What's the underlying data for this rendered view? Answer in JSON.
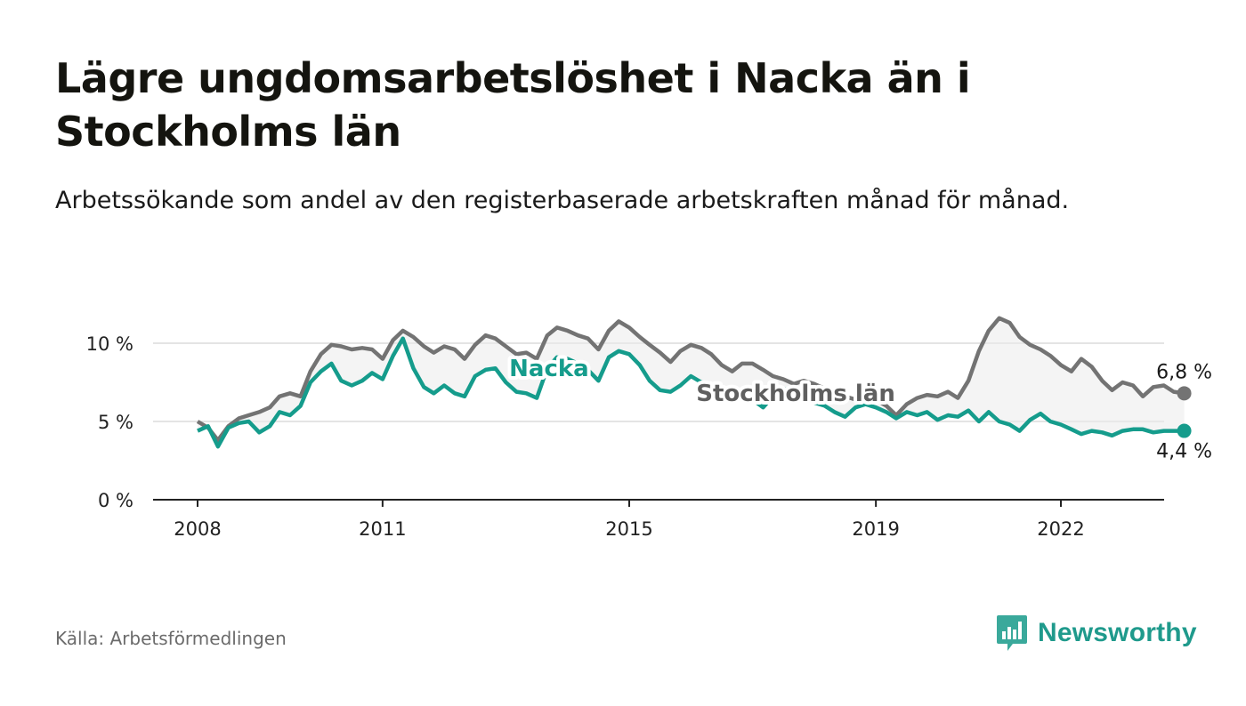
{
  "title": "Lägre ungdomsarbetslöshet i Nacka än i Stockholms län",
  "subtitle": "Arbetssökande som andel av den registerbaserade arbetskraften månad för månad.",
  "source": "Källa: Arbetsförmedlingen",
  "brand": "Newsworthy",
  "colors": {
    "nacka": "#159c8c",
    "stockholm": "#737373",
    "grid": "#dcdcdc",
    "band": "#ebebeb"
  },
  "chart_data": {
    "type": "line",
    "title": "Lägre ungdomsarbetslöshet i Nacka än i Stockholms län",
    "xlabel": "",
    "ylabel": "",
    "xlim": [
      2007.6,
      2023.6
    ],
    "ylim": [
      0,
      10
    ],
    "y_ticks": [
      0,
      5,
      10
    ],
    "y_tick_labels": [
      "0 %",
      "5 %",
      "10 %"
    ],
    "x_ticks": [
      2008,
      2011,
      2015,
      2019,
      2022
    ],
    "x_tick_labels": [
      "2008",
      "2011",
      "2015",
      "2019",
      "2022"
    ],
    "grid": true,
    "series": [
      {
        "name": "Stockholms län",
        "label": "Stockholms län",
        "color": "#737373",
        "end_label": "6,8 %",
        "points": [
          [
            2008.0,
            5.0
          ],
          [
            2008.17,
            4.6
          ],
          [
            2008.33,
            3.8
          ],
          [
            2008.5,
            4.7
          ],
          [
            2008.67,
            5.2
          ],
          [
            2008.83,
            5.4
          ],
          [
            2009.0,
            5.6
          ],
          [
            2009.17,
            5.9
          ],
          [
            2009.33,
            6.6
          ],
          [
            2009.5,
            6.8
          ],
          [
            2009.67,
            6.6
          ],
          [
            2009.83,
            8.2
          ],
          [
            2010.0,
            9.3
          ],
          [
            2010.17,
            9.9
          ],
          [
            2010.33,
            9.8
          ],
          [
            2010.5,
            9.6
          ],
          [
            2010.67,
            9.7
          ],
          [
            2010.83,
            9.6
          ],
          [
            2011.0,
            9.0
          ],
          [
            2011.17,
            10.2
          ],
          [
            2011.33,
            10.8
          ],
          [
            2011.5,
            10.4
          ],
          [
            2011.67,
            9.8
          ],
          [
            2011.83,
            9.4
          ],
          [
            2012.0,
            9.8
          ],
          [
            2012.17,
            9.6
          ],
          [
            2012.33,
            9.0
          ],
          [
            2012.5,
            9.9
          ],
          [
            2012.67,
            10.5
          ],
          [
            2012.83,
            10.3
          ],
          [
            2013.0,
            9.8
          ],
          [
            2013.17,
            9.3
          ],
          [
            2013.33,
            9.4
          ],
          [
            2013.5,
            9.0
          ],
          [
            2013.67,
            10.5
          ],
          [
            2013.83,
            11.0
          ],
          [
            2014.0,
            10.8
          ],
          [
            2014.17,
            10.5
          ],
          [
            2014.33,
            10.3
          ],
          [
            2014.5,
            9.6
          ],
          [
            2014.67,
            10.8
          ],
          [
            2014.83,
            11.4
          ],
          [
            2015.0,
            11.0
          ],
          [
            2015.17,
            10.4
          ],
          [
            2015.33,
            9.9
          ],
          [
            2015.5,
            9.4
          ],
          [
            2015.67,
            8.8
          ],
          [
            2015.83,
            9.5
          ],
          [
            2016.0,
            9.9
          ],
          [
            2016.17,
            9.7
          ],
          [
            2016.33,
            9.3
          ],
          [
            2016.5,
            8.6
          ],
          [
            2016.67,
            8.2
          ],
          [
            2016.83,
            8.7
          ],
          [
            2017.0,
            8.7
          ],
          [
            2017.17,
            8.3
          ],
          [
            2017.33,
            7.9
          ],
          [
            2017.5,
            7.7
          ],
          [
            2017.67,
            7.4
          ],
          [
            2017.83,
            7.6
          ],
          [
            2018.0,
            7.4
          ],
          [
            2018.17,
            7.1
          ],
          [
            2018.33,
            6.9
          ],
          [
            2018.5,
            6.6
          ],
          [
            2018.67,
            6.4
          ],
          [
            2018.83,
            6.2
          ],
          [
            2019.0,
            6.4
          ],
          [
            2019.17,
            6.0
          ],
          [
            2019.33,
            5.4
          ],
          [
            2019.5,
            6.1
          ],
          [
            2019.67,
            6.5
          ],
          [
            2019.83,
            6.7
          ],
          [
            2020.0,
            6.6
          ],
          [
            2020.17,
            6.9
          ],
          [
            2020.33,
            6.5
          ],
          [
            2020.5,
            7.6
          ],
          [
            2020.67,
            9.5
          ],
          [
            2020.83,
            10.8
          ],
          [
            2021.0,
            11.6
          ],
          [
            2021.17,
            11.3
          ],
          [
            2021.33,
            10.4
          ],
          [
            2021.5,
            9.9
          ],
          [
            2021.67,
            9.6
          ],
          [
            2021.83,
            9.2
          ],
          [
            2022.0,
            8.6
          ],
          [
            2022.17,
            8.2
          ],
          [
            2022.33,
            9.0
          ],
          [
            2022.5,
            8.5
          ],
          [
            2022.67,
            7.6
          ],
          [
            2022.83,
            7.0
          ],
          [
            2023.0,
            7.5
          ],
          [
            2023.17,
            7.3
          ],
          [
            2023.33,
            6.6
          ],
          [
            2023.5,
            7.2
          ],
          [
            2023.67,
            7.3
          ],
          [
            2023.83,
            6.9
          ],
          [
            2024.0,
            6.8
          ]
        ]
      },
      {
        "name": "Nacka",
        "label": "Nacka",
        "color": "#159c8c",
        "end_label": "4,4 %",
        "points": [
          [
            2008.0,
            4.4
          ],
          [
            2008.17,
            4.7
          ],
          [
            2008.33,
            3.4
          ],
          [
            2008.5,
            4.6
          ],
          [
            2008.67,
            4.9
          ],
          [
            2008.83,
            5.0
          ],
          [
            2009.0,
            4.3
          ],
          [
            2009.17,
            4.7
          ],
          [
            2009.33,
            5.6
          ],
          [
            2009.5,
            5.4
          ],
          [
            2009.67,
            6.0
          ],
          [
            2009.83,
            7.5
          ],
          [
            2010.0,
            8.2
          ],
          [
            2010.17,
            8.7
          ],
          [
            2010.33,
            7.6
          ],
          [
            2010.5,
            7.3
          ],
          [
            2010.67,
            7.6
          ],
          [
            2010.83,
            8.1
          ],
          [
            2011.0,
            7.7
          ],
          [
            2011.17,
            9.2
          ],
          [
            2011.33,
            10.3
          ],
          [
            2011.5,
            8.4
          ],
          [
            2011.67,
            7.2
          ],
          [
            2011.83,
            6.8
          ],
          [
            2012.0,
            7.3
          ],
          [
            2012.17,
            6.8
          ],
          [
            2012.33,
            6.6
          ],
          [
            2012.5,
            7.9
          ],
          [
            2012.67,
            8.3
          ],
          [
            2012.83,
            8.4
          ],
          [
            2013.0,
            7.5
          ],
          [
            2013.17,
            6.9
          ],
          [
            2013.33,
            6.8
          ],
          [
            2013.5,
            6.5
          ],
          [
            2013.67,
            8.4
          ],
          [
            2013.83,
            9.1
          ],
          [
            2014.0,
            9.0
          ],
          [
            2014.17,
            8.7
          ],
          [
            2014.33,
            8.3
          ],
          [
            2014.5,
            7.6
          ],
          [
            2014.67,
            9.1
          ],
          [
            2014.83,
            9.5
          ],
          [
            2015.0,
            9.3
          ],
          [
            2015.17,
            8.6
          ],
          [
            2015.33,
            7.6
          ],
          [
            2015.5,
            7.0
          ],
          [
            2015.67,
            6.9
          ],
          [
            2015.83,
            7.3
          ],
          [
            2016.0,
            7.9
          ],
          [
            2016.17,
            7.5
          ],
          [
            2016.33,
            7.4
          ],
          [
            2016.5,
            6.8
          ],
          [
            2016.67,
            6.4
          ],
          [
            2016.83,
            6.7
          ],
          [
            2017.0,
            6.4
          ],
          [
            2017.17,
            5.9
          ],
          [
            2017.33,
            6.6
          ],
          [
            2017.5,
            7.0
          ],
          [
            2017.67,
            7.2
          ],
          [
            2017.83,
            6.7
          ],
          [
            2018.0,
            6.2
          ],
          [
            2018.17,
            6.0
          ],
          [
            2018.33,
            5.6
          ],
          [
            2018.5,
            5.3
          ],
          [
            2018.67,
            5.9
          ],
          [
            2018.83,
            6.1
          ],
          [
            2019.0,
            5.9
          ],
          [
            2019.17,
            5.6
          ],
          [
            2019.33,
            5.2
          ],
          [
            2019.5,
            5.6
          ],
          [
            2019.67,
            5.4
          ],
          [
            2019.83,
            5.6
          ],
          [
            2020.0,
            5.1
          ],
          [
            2020.17,
            5.4
          ],
          [
            2020.33,
            5.3
          ],
          [
            2020.5,
            5.7
          ],
          [
            2020.67,
            5.0
          ],
          [
            2020.83,
            5.6
          ],
          [
            2021.0,
            5.0
          ],
          [
            2021.17,
            4.8
          ],
          [
            2021.33,
            4.4
          ],
          [
            2021.5,
            5.1
          ],
          [
            2021.67,
            5.5
          ],
          [
            2021.83,
            5.0
          ],
          [
            2022.0,
            4.8
          ],
          [
            2022.17,
            4.5
          ],
          [
            2022.33,
            4.2
          ],
          [
            2022.5,
            4.4
          ],
          [
            2022.67,
            4.3
          ],
          [
            2022.83,
            4.1
          ],
          [
            2023.0,
            4.4
          ],
          [
            2023.17,
            4.5
          ],
          [
            2023.33,
            4.5
          ],
          [
            2023.5,
            4.3
          ],
          [
            2023.67,
            4.4
          ],
          [
            2023.83,
            4.4
          ],
          [
            2024.0,
            4.4
          ]
        ]
      }
    ],
    "legend": "inline labels"
  }
}
